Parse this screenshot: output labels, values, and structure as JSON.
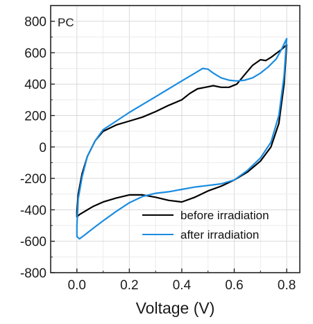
{
  "chart_data": {
    "type": "line",
    "panel_label": "PC",
    "xlabel": "Voltage (V)",
    "ylabel": "",
    "xlim": [
      -0.1,
      0.85
    ],
    "ylim": [
      -800,
      900
    ],
    "x_ticks": [
      "0.0",
      "0.2",
      "0.4",
      "0.6",
      "0.8"
    ],
    "y_ticks": [
      "-800",
      "-600",
      "-400",
      "-200",
      "0",
      "200",
      "400",
      "600",
      "800"
    ],
    "grid": true,
    "legend_position": "bottom-right",
    "series": [
      {
        "name": "before irradiation",
        "color": "#000000",
        "x": [
          0.8,
          0.78,
          0.74,
          0.72,
          0.7,
          0.67,
          0.64,
          0.61,
          0.58,
          0.55,
          0.52,
          0.49,
          0.46,
          0.43,
          0.4,
          0.35,
          0.3,
          0.25,
          0.2,
          0.15,
          0.1,
          0.07,
          0.04,
          0.02,
          0.005,
          0.0,
          0.0,
          0.01,
          0.03,
          0.06,
          0.1,
          0.15,
          0.2,
          0.25,
          0.3,
          0.35,
          0.4,
          0.45,
          0.5,
          0.55,
          0.6,
          0.65,
          0.7,
          0.74,
          0.77,
          0.79,
          0.8
        ],
        "y": [
          650,
          620,
          570,
          550,
          555,
          520,
          460,
          400,
          380,
          380,
          390,
          380,
          370,
          340,
          300,
          265,
          225,
          190,
          165,
          140,
          100,
          40,
          -60,
          -170,
          -300,
          -410,
          -445,
          -430,
          -410,
          -380,
          -350,
          -325,
          -305,
          -305,
          -320,
          -340,
          -350,
          -320,
          -280,
          -250,
          -210,
          -160,
          -90,
          0,
          150,
          400,
          650
        ]
      },
      {
        "name": "after irradiation",
        "color": "#1a8ce0",
        "x": [
          0.8,
          0.78,
          0.76,
          0.73,
          0.7,
          0.67,
          0.64,
          0.61,
          0.58,
          0.55,
          0.52,
          0.5,
          0.48,
          0.45,
          0.4,
          0.35,
          0.3,
          0.25,
          0.2,
          0.15,
          0.1,
          0.07,
          0.04,
          0.02,
          0.005,
          0.0,
          0.0,
          0.01,
          0.03,
          0.06,
          0.1,
          0.15,
          0.2,
          0.25,
          0.3,
          0.35,
          0.4,
          0.45,
          0.5,
          0.55,
          0.6,
          0.65,
          0.7,
          0.74,
          0.77,
          0.79,
          0.8
        ],
        "y": [
          690,
          620,
          560,
          510,
          470,
          440,
          425,
          420,
          425,
          440,
          470,
          495,
          500,
          470,
          420,
          370,
          320,
          270,
          220,
          165,
          110,
          40,
          -60,
          -190,
          -330,
          -500,
          -570,
          -585,
          -560,
          -520,
          -470,
          -410,
          -355,
          -315,
          -295,
          -285,
          -270,
          -255,
          -245,
          -235,
          -210,
          -150,
          -70,
          30,
          200,
          450,
          690
        ]
      }
    ]
  }
}
